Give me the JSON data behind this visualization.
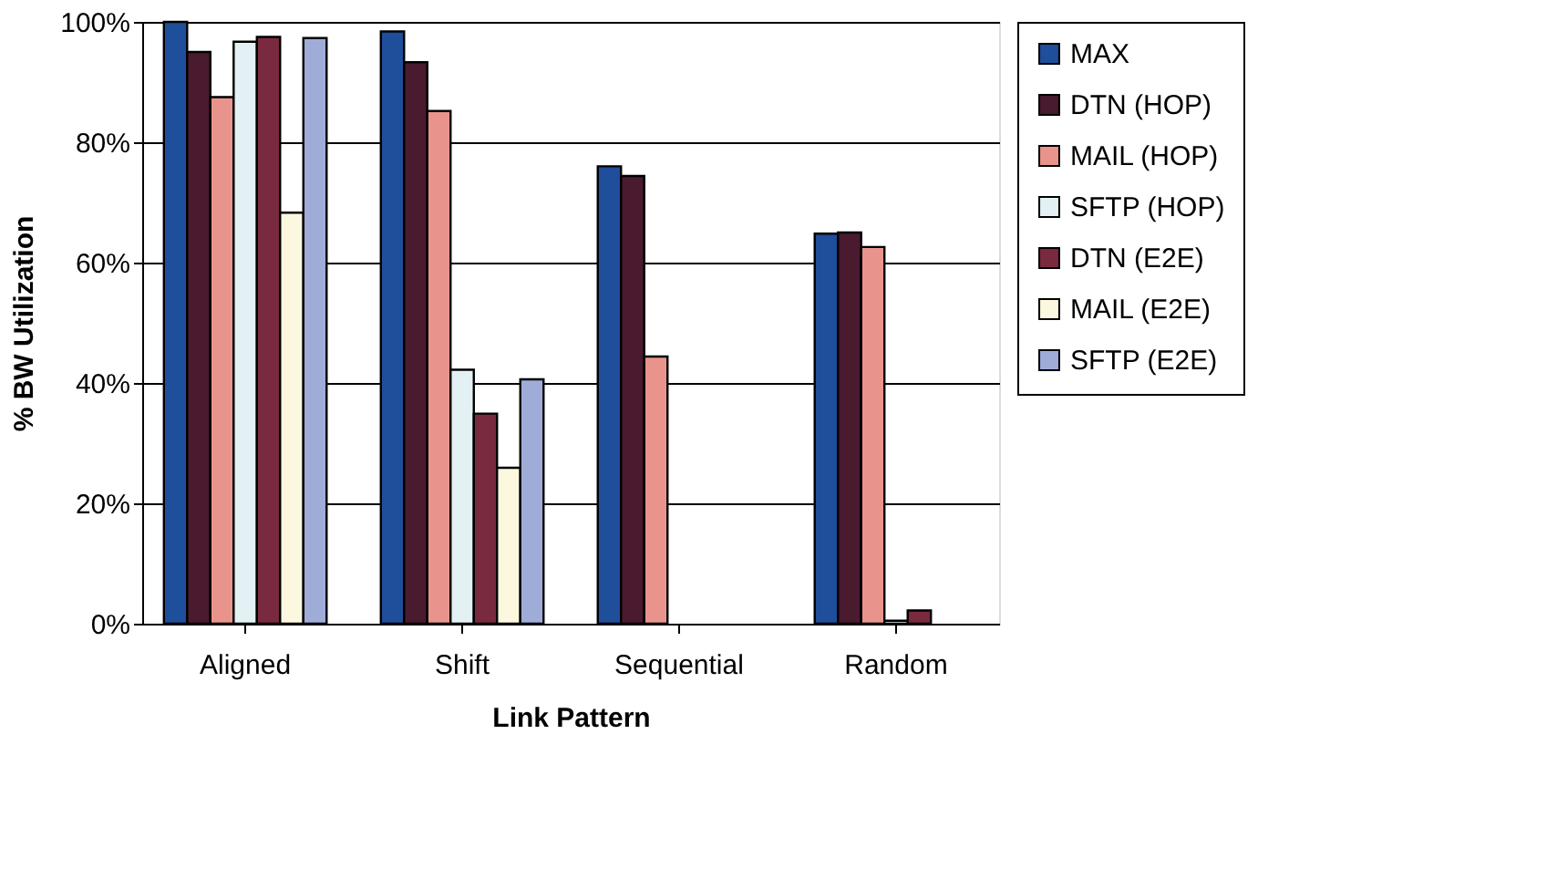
{
  "chart_data": {
    "type": "bar",
    "xlabel": "Link Pattern",
    "ylabel": "% BW Utilization",
    "categories": [
      "Aligned",
      "Shift",
      "Sequential",
      "Random"
    ],
    "series": [
      {
        "name": "MAX",
        "color": "#1f4e9a",
        "values": [
          100,
          98.4,
          76,
          64.8
        ]
      },
      {
        "name": "DTN (HOP)",
        "color": "#4a1a2e",
        "values": [
          95,
          93.3,
          74.4,
          65
        ]
      },
      {
        "name": "MAIL (HOP)",
        "color": "#e8948c",
        "values": [
          87.5,
          85.2,
          44.4,
          62.6
        ]
      },
      {
        "name": "SFTP (HOP)",
        "color": "#e4f1f4",
        "values": [
          96.7,
          42.2,
          null,
          0.5
        ]
      },
      {
        "name": "DTN (E2E)",
        "color": "#7a2a3e",
        "values": [
          97.5,
          34.9,
          null,
          2.2
        ]
      },
      {
        "name": "MAIL (E2E)",
        "color": "#fcf8e0",
        "values": [
          68.3,
          25.9,
          null,
          null
        ]
      },
      {
        "name": "SFTP (E2E)",
        "color": "#a0acd8",
        "values": [
          97.3,
          40.6,
          null,
          null
        ]
      }
    ],
    "ylim": [
      0,
      100
    ],
    "yticks": [
      {
        "value": 0,
        "label": "0%"
      },
      {
        "value": 20,
        "label": "20%"
      },
      {
        "value": 40,
        "label": "40%"
      },
      {
        "value": 60,
        "label": "60%"
      },
      {
        "value": 80,
        "label": "80%"
      },
      {
        "value": 100,
        "label": "100%"
      }
    ],
    "grid": "y",
    "legend": "right"
  }
}
